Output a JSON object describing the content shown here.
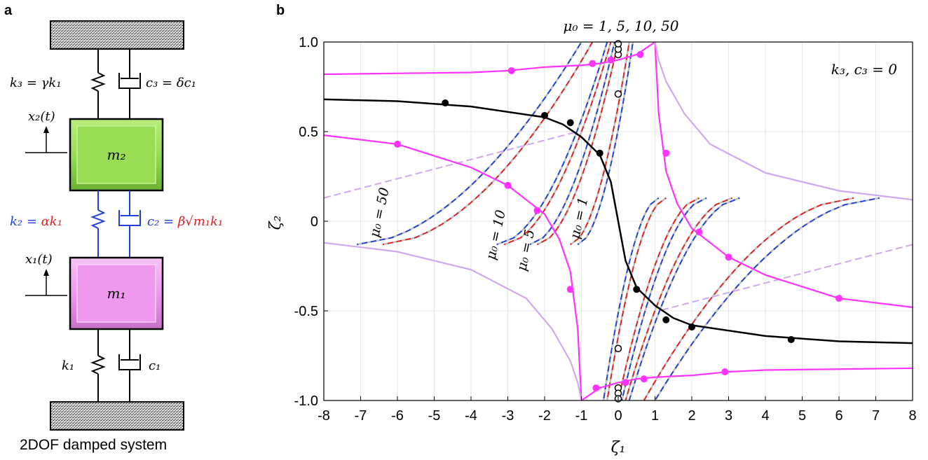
{
  "panel_a": {
    "letter": "a",
    "caption": "2DOF damped system",
    "mass2_label": "m₂",
    "mass1_label": "m₁",
    "x2_label": "x₂(t)",
    "x1_label": "x₁(t)",
    "k3_label": "k₃ = γk₁",
    "c3_label": "c₃ = δc₁",
    "k2_label_lhs": "k₂ = ",
    "k2_label_rhs": "αk₁",
    "c2_label_lhs": "c₂ = ",
    "c2_label_rhs": "β√m₁k₁",
    "k1_label": "k₁",
    "c1_label": "c₁",
    "colors": {
      "mass2": "#99dd55",
      "mass1": "#ee99ee",
      "coupling_element": "#1f3fd6",
      "coupling_param": "#e02020",
      "ground": "#888888"
    }
  },
  "panel_b": {
    "letter": "b",
    "annotation_top": "μ₀ = 1, 5, 10, 50",
    "annotation_corner": "k₃, c₃ = 0",
    "curve_labels": [
      "μ₀ = 50",
      "μ₀ = 10",
      "μ₀ = 5",
      "μ₀ = 1"
    ],
    "colors": {
      "main": "#000000",
      "magenta": "#ff33ff",
      "lavender": "#cfa9ef",
      "blue_dash": "#1f3fd6",
      "red_dash": "#e02020",
      "gray_dash": "#c0c0c0"
    }
  },
  "chart_data": {
    "type": "line",
    "xlabel": "ζ₁",
    "ylabel": "ζ₂",
    "xlim": [
      -8,
      8
    ],
    "ylim": [
      -1,
      1
    ],
    "xticks": [
      -8,
      -7,
      -6,
      -5,
      -4,
      -3,
      -2,
      -1,
      0,
      1,
      2,
      3,
      4,
      5,
      6,
      7,
      8
    ],
    "yticks": [
      -1.0,
      -0.5,
      0,
      0.5,
      1.0
    ],
    "ytick_labels": [
      "-1.0",
      "-0.5",
      "0",
      "0.5",
      "1.0"
    ],
    "grid": true,
    "series": [
      {
        "style": "black-solid",
        "x": [
          -8,
          -6,
          -4,
          -2,
          -1.5,
          -1,
          -0.5,
          -0.2,
          0,
          0.2,
          0.5,
          1,
          1.5,
          2,
          4,
          6,
          8
        ],
        "y": [
          0.68,
          0.67,
          0.64,
          0.58,
          0.54,
          0.47,
          0.37,
          0.22,
          0,
          -0.22,
          -0.37,
          -0.47,
          -0.54,
          -0.58,
          -0.64,
          -0.67,
          -0.68
        ]
      },
      {
        "style": "magenta-solid",
        "x": [
          -8,
          -6,
          -4,
          -3,
          -2,
          -1.6,
          -1.3,
          -1.1,
          -1
        ],
        "y": [
          0.48,
          0.43,
          0.3,
          0.2,
          0.04,
          -0.1,
          -0.28,
          -0.6,
          -1.0
        ]
      },
      {
        "style": "magenta-solid",
        "x": [
          1,
          1.1,
          1.3,
          1.6,
          2,
          3,
          4,
          6,
          8
        ],
        "y": [
          1.0,
          0.6,
          0.28,
          0.1,
          -0.04,
          -0.2,
          -0.3,
          -0.43,
          -0.48
        ]
      },
      {
        "style": "magenta-solid",
        "x": [
          -8,
          -4,
          -3,
          -2,
          -1,
          -0.5,
          0,
          0.5,
          1
        ],
        "y": [
          0.82,
          0.83,
          0.84,
          0.86,
          0.87,
          0.88,
          0.9,
          0.93,
          1.0
        ]
      },
      {
        "style": "magenta-solid",
        "x": [
          -1,
          -0.5,
          0,
          0.5,
          1,
          2,
          3,
          4,
          8
        ],
        "y": [
          -1.0,
          -0.93,
          -0.9,
          -0.88,
          -0.87,
          -0.86,
          -0.84,
          -0.83,
          -0.82
        ]
      },
      {
        "style": "lavender-solid",
        "x": [
          -8,
          -6,
          -4,
          -2.5,
          -1.8,
          -1.3,
          -1.1,
          -1
        ],
        "y": [
          -0.12,
          -0.17,
          -0.27,
          -0.43,
          -0.6,
          -0.78,
          -0.9,
          -1.0
        ]
      },
      {
        "style": "lavender-solid",
        "x": [
          1,
          1.1,
          1.3,
          1.8,
          2.5,
          4,
          6,
          8
        ],
        "y": [
          1.0,
          0.9,
          0.78,
          0.6,
          0.43,
          0.27,
          0.17,
          0.12
        ]
      }
    ],
    "markers_filled_black": [
      [
        -4.7,
        0.66
      ],
      [
        -2.0,
        0.59
      ],
      [
        -1.3,
        0.55
      ],
      [
        -0.5,
        0.38
      ],
      [
        0.5,
        -0.38
      ],
      [
        1.3,
        -0.55
      ],
      [
        2.0,
        -0.59
      ],
      [
        4.7,
        -0.66
      ]
    ],
    "markers_filled_magenta": [
      [
        -6.0,
        0.43
      ],
      [
        -3.0,
        0.2
      ],
      [
        -2.2,
        0.06
      ],
      [
        -1.3,
        -0.38
      ],
      [
        1.3,
        0.38
      ],
      [
        2.2,
        -0.06
      ],
      [
        3.0,
        -0.2
      ],
      [
        6.0,
        -0.43
      ],
      [
        -2.9,
        0.84
      ],
      [
        -0.7,
        0.88
      ],
      [
        -0.2,
        0.9
      ],
      [
        0.6,
        0.93
      ],
      [
        -0.6,
        -0.93
      ],
      [
        0.2,
        -0.9
      ],
      [
        0.7,
        -0.88
      ],
      [
        2.9,
        -0.84
      ]
    ],
    "markers_open": [
      [
        0,
        0.71
      ],
      [
        0,
        0.93
      ],
      [
        0,
        0.96
      ],
      [
        0,
        0.99
      ],
      [
        0,
        -0.71
      ],
      [
        0,
        -0.93
      ],
      [
        0,
        -0.96
      ],
      [
        0,
        -0.99
      ]
    ]
  }
}
